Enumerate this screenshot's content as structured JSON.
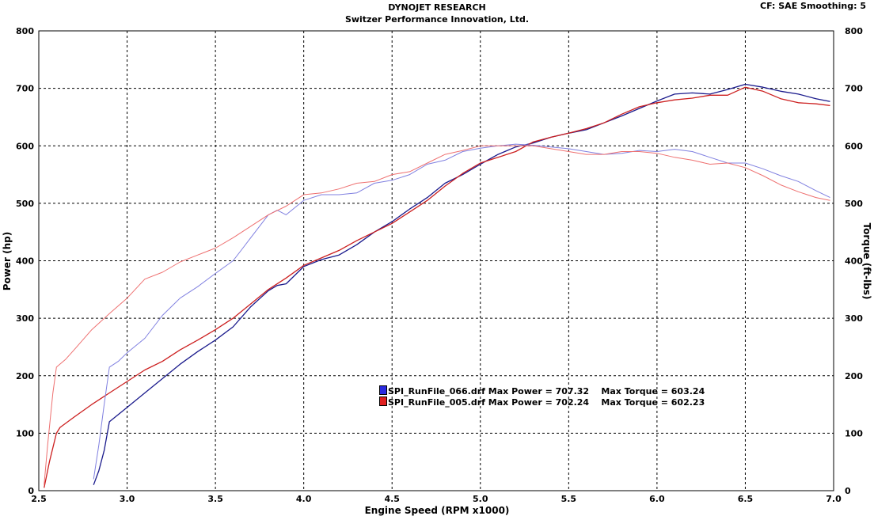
{
  "header": {
    "title": "DYNOJET RESEARCH",
    "subtitle": "Switzer Performance Innovation, Ltd.",
    "cf_info": "CF: SAE  Smoothing: 5"
  },
  "chart_data": {
    "type": "line",
    "xlabel": "Engine Speed (RPM x1000)",
    "ylabel_left": "Power (hp)",
    "ylabel_right": "Torque (ft-lbs)",
    "xlim": [
      2.5,
      7.0
    ],
    "ylim": [
      0,
      800
    ],
    "xticks": [
      "2.5",
      "3.0",
      "3.5",
      "4.0",
      "4.5",
      "5.0",
      "5.5",
      "6.0",
      "6.5",
      "7.0"
    ],
    "yticks": [
      "0",
      "100",
      "200",
      "300",
      "400",
      "500",
      "600",
      "700",
      "800"
    ],
    "grid": true,
    "colors": {
      "run066": "#1a1a8c",
      "run005": "#cc1f1f",
      "run066_light": "#8080e0",
      "run005_light": "#ee7070"
    },
    "legend": [
      {
        "file": "SPI_RunFile_066.drf",
        "max_power_label": "Max Power = 707.32",
        "max_torque_label": "Max Torque = 603.24",
        "color": "#2a2ae0"
      },
      {
        "file": "SPI_RunFile_005.drf",
        "max_power_label": "Max Power = 702.24",
        "max_torque_label": "Max Torque = 602.23",
        "color": "#e02020"
      }
    ],
    "series": [
      {
        "name": "SPI_RunFile_066.drf",
        "kind": "power",
        "color": "#1a1a8c",
        "width": 1.3,
        "x": [
          2.81,
          2.84,
          2.87,
          2.9,
          3.0,
          3.1,
          3.2,
          3.3,
          3.4,
          3.5,
          3.6,
          3.7,
          3.8,
          3.85,
          3.9,
          4.0,
          4.1,
          4.2,
          4.3,
          4.4,
          4.5,
          4.6,
          4.7,
          4.8,
          4.9,
          5.0,
          5.1,
          5.2,
          5.3,
          5.4,
          5.5,
          5.6,
          5.7,
          5.8,
          5.9,
          6.0,
          6.1,
          6.2,
          6.3,
          6.4,
          6.5,
          6.6,
          6.7,
          6.8,
          6.9,
          6.98
        ],
        "y": [
          10,
          35,
          70,
          120,
          145,
          170,
          195,
          220,
          242,
          262,
          285,
          320,
          348,
          357,
          360,
          390,
          402,
          410,
          428,
          450,
          468,
          490,
          510,
          535,
          550,
          568,
          585,
          598,
          605,
          615,
          622,
          628,
          640,
          652,
          665,
          678,
          690,
          692,
          690,
          698,
          707,
          702,
          695,
          690,
          682,
          677
        ]
      },
      {
        "name": "SPI_RunFile_005.drf",
        "kind": "power",
        "color": "#cc1f1f",
        "width": 1.3,
        "x": [
          2.53,
          2.56,
          2.6,
          2.62,
          2.7,
          2.8,
          2.9,
          3.0,
          3.1,
          3.2,
          3.3,
          3.4,
          3.5,
          3.6,
          3.7,
          3.8,
          3.9,
          4.0,
          4.1,
          4.2,
          4.3,
          4.4,
          4.5,
          4.6,
          4.7,
          4.8,
          4.9,
          5.0,
          5.1,
          5.2,
          5.3,
          5.4,
          5.5,
          5.6,
          5.7,
          5.8,
          5.9,
          6.0,
          6.1,
          6.2,
          6.3,
          6.4,
          6.5,
          6.6,
          6.7,
          6.8,
          6.9,
          6.98
        ],
        "y": [
          5,
          50,
          100,
          110,
          128,
          150,
          170,
          190,
          210,
          225,
          245,
          262,
          280,
          300,
          325,
          350,
          370,
          392,
          405,
          418,
          435,
          450,
          465,
          485,
          505,
          530,
          552,
          570,
          580,
          590,
          607,
          615,
          622,
          630,
          640,
          655,
          668,
          675,
          680,
          683,
          688,
          688,
          702,
          695,
          682,
          675,
          673,
          670
        ]
      },
      {
        "name": "SPI_RunFile_066.drf",
        "kind": "torque",
        "color": "#8080e0",
        "width": 1,
        "x": [
          2.81,
          2.84,
          2.87,
          2.9,
          2.95,
          3.0,
          3.1,
          3.2,
          3.3,
          3.4,
          3.5,
          3.6,
          3.65,
          3.7,
          3.8,
          3.85,
          3.9,
          4.0,
          4.1,
          4.2,
          4.3,
          4.4,
          4.5,
          4.6,
          4.7,
          4.8,
          4.9,
          5.0,
          5.1,
          5.2,
          5.3,
          5.4,
          5.5,
          5.6,
          5.7,
          5.8,
          5.9,
          6.0,
          6.1,
          6.2,
          6.3,
          6.4,
          6.5,
          6.6,
          6.7,
          6.8,
          6.9,
          6.98
        ],
        "y": [
          20,
          80,
          150,
          215,
          225,
          240,
          265,
          305,
          335,
          355,
          378,
          400,
          420,
          440,
          480,
          488,
          480,
          505,
          515,
          515,
          518,
          535,
          540,
          550,
          568,
          575,
          590,
          596,
          600,
          603,
          601,
          598,
          595,
          590,
          585,
          587,
          592,
          590,
          594,
          590,
          580,
          570,
          570,
          560,
          548,
          538,
          522,
          510
        ]
      },
      {
        "name": "SPI_RunFile_005.drf",
        "kind": "torque",
        "color": "#ee7070",
        "width": 1,
        "x": [
          2.53,
          2.55,
          2.58,
          2.6,
          2.65,
          2.7,
          2.8,
          2.9,
          3.0,
          3.1,
          3.2,
          3.3,
          3.4,
          3.5,
          3.6,
          3.7,
          3.8,
          3.9,
          4.0,
          4.1,
          4.2,
          4.3,
          4.4,
          4.5,
          4.6,
          4.7,
          4.8,
          4.9,
          5.0,
          5.1,
          5.2,
          5.3,
          5.4,
          5.5,
          5.6,
          5.7,
          5.8,
          5.9,
          6.0,
          6.1,
          6.2,
          6.3,
          6.4,
          6.5,
          6.6,
          6.7,
          6.8,
          6.9,
          6.98
        ],
        "y": [
          10,
          80,
          170,
          215,
          228,
          245,
          280,
          308,
          335,
          368,
          380,
          398,
          410,
          422,
          440,
          460,
          480,
          495,
          515,
          518,
          525,
          535,
          538,
          550,
          555,
          570,
          585,
          592,
          600,
          600,
          600,
          600,
          595,
          590,
          585,
          585,
          590,
          590,
          587,
          580,
          575,
          568,
          570,
          562,
          548,
          532,
          520,
          510,
          505
        ]
      }
    ]
  }
}
